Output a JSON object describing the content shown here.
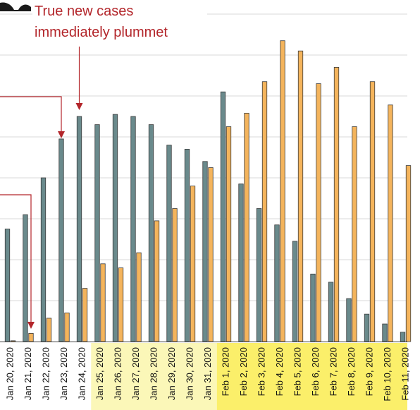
{
  "chart_data": {
    "type": "bar",
    "title": "",
    "xlabel": "",
    "ylabel": "",
    "categories": [
      "Jan 20, 2020",
      "Jan 21, 2020",
      "Jan 22, 2020",
      "Jan 23, 2020",
      "Jan 24, 2020",
      "Jan 25, 2020",
      "Jan 26, 2020",
      "Jan 27, 2020",
      "Jan 28, 2020",
      "Jan 29, 2020",
      "Jan 30, 2020",
      "Jan 31, 2020",
      "Feb 1, 2020",
      "Feb 2, 2020",
      "Feb 3, 2020",
      "Feb 4, 2020",
      "Feb 5, 2020",
      "Feb 6, 2020",
      "Feb 7, 2020",
      "Feb 8, 2020",
      "Feb 9, 2020",
      "Feb 10, 2020",
      "Feb 11, 2020"
    ],
    "series": [
      {
        "color": "#6a8a8c",
        "values": [
          2.75,
          3.1,
          4.0,
          4.95,
          5.5,
          5.3,
          5.55,
          5.5,
          5.3,
          4.8,
          4.7,
          4.4,
          6.1,
          3.85,
          3.25,
          2.85,
          2.45,
          1.65,
          1.45,
          1.05,
          0.67,
          0.43,
          0.23
        ]
      },
      {
        "color": "#f4b45c",
        "values": [
          0.02,
          0.2,
          0.57,
          0.7,
          1.3,
          1.9,
          1.8,
          2.17,
          2.95,
          3.25,
          3.8,
          4.25,
          5.25,
          5.58,
          6.35,
          7.35,
          7.1,
          6.3,
          6.7,
          5.25,
          6.35,
          5.78,
          4.3
        ]
      }
    ],
    "ylim": [
      0,
      8
    ],
    "grid": true,
    "highlight_bands": [
      {
        "from": "Jan 25, 2020",
        "to": "Jan 31, 2020",
        "color": "#fbf7b8"
      },
      {
        "from": "Feb 1, 2020",
        "to": "Feb 11, 2020",
        "color": "#fbef6a"
      }
    ],
    "annotations": [
      {
        "text_lines": [
          "True new cases",
          "immediately plummet"
        ],
        "color": "#b3262b"
      }
    ]
  }
}
